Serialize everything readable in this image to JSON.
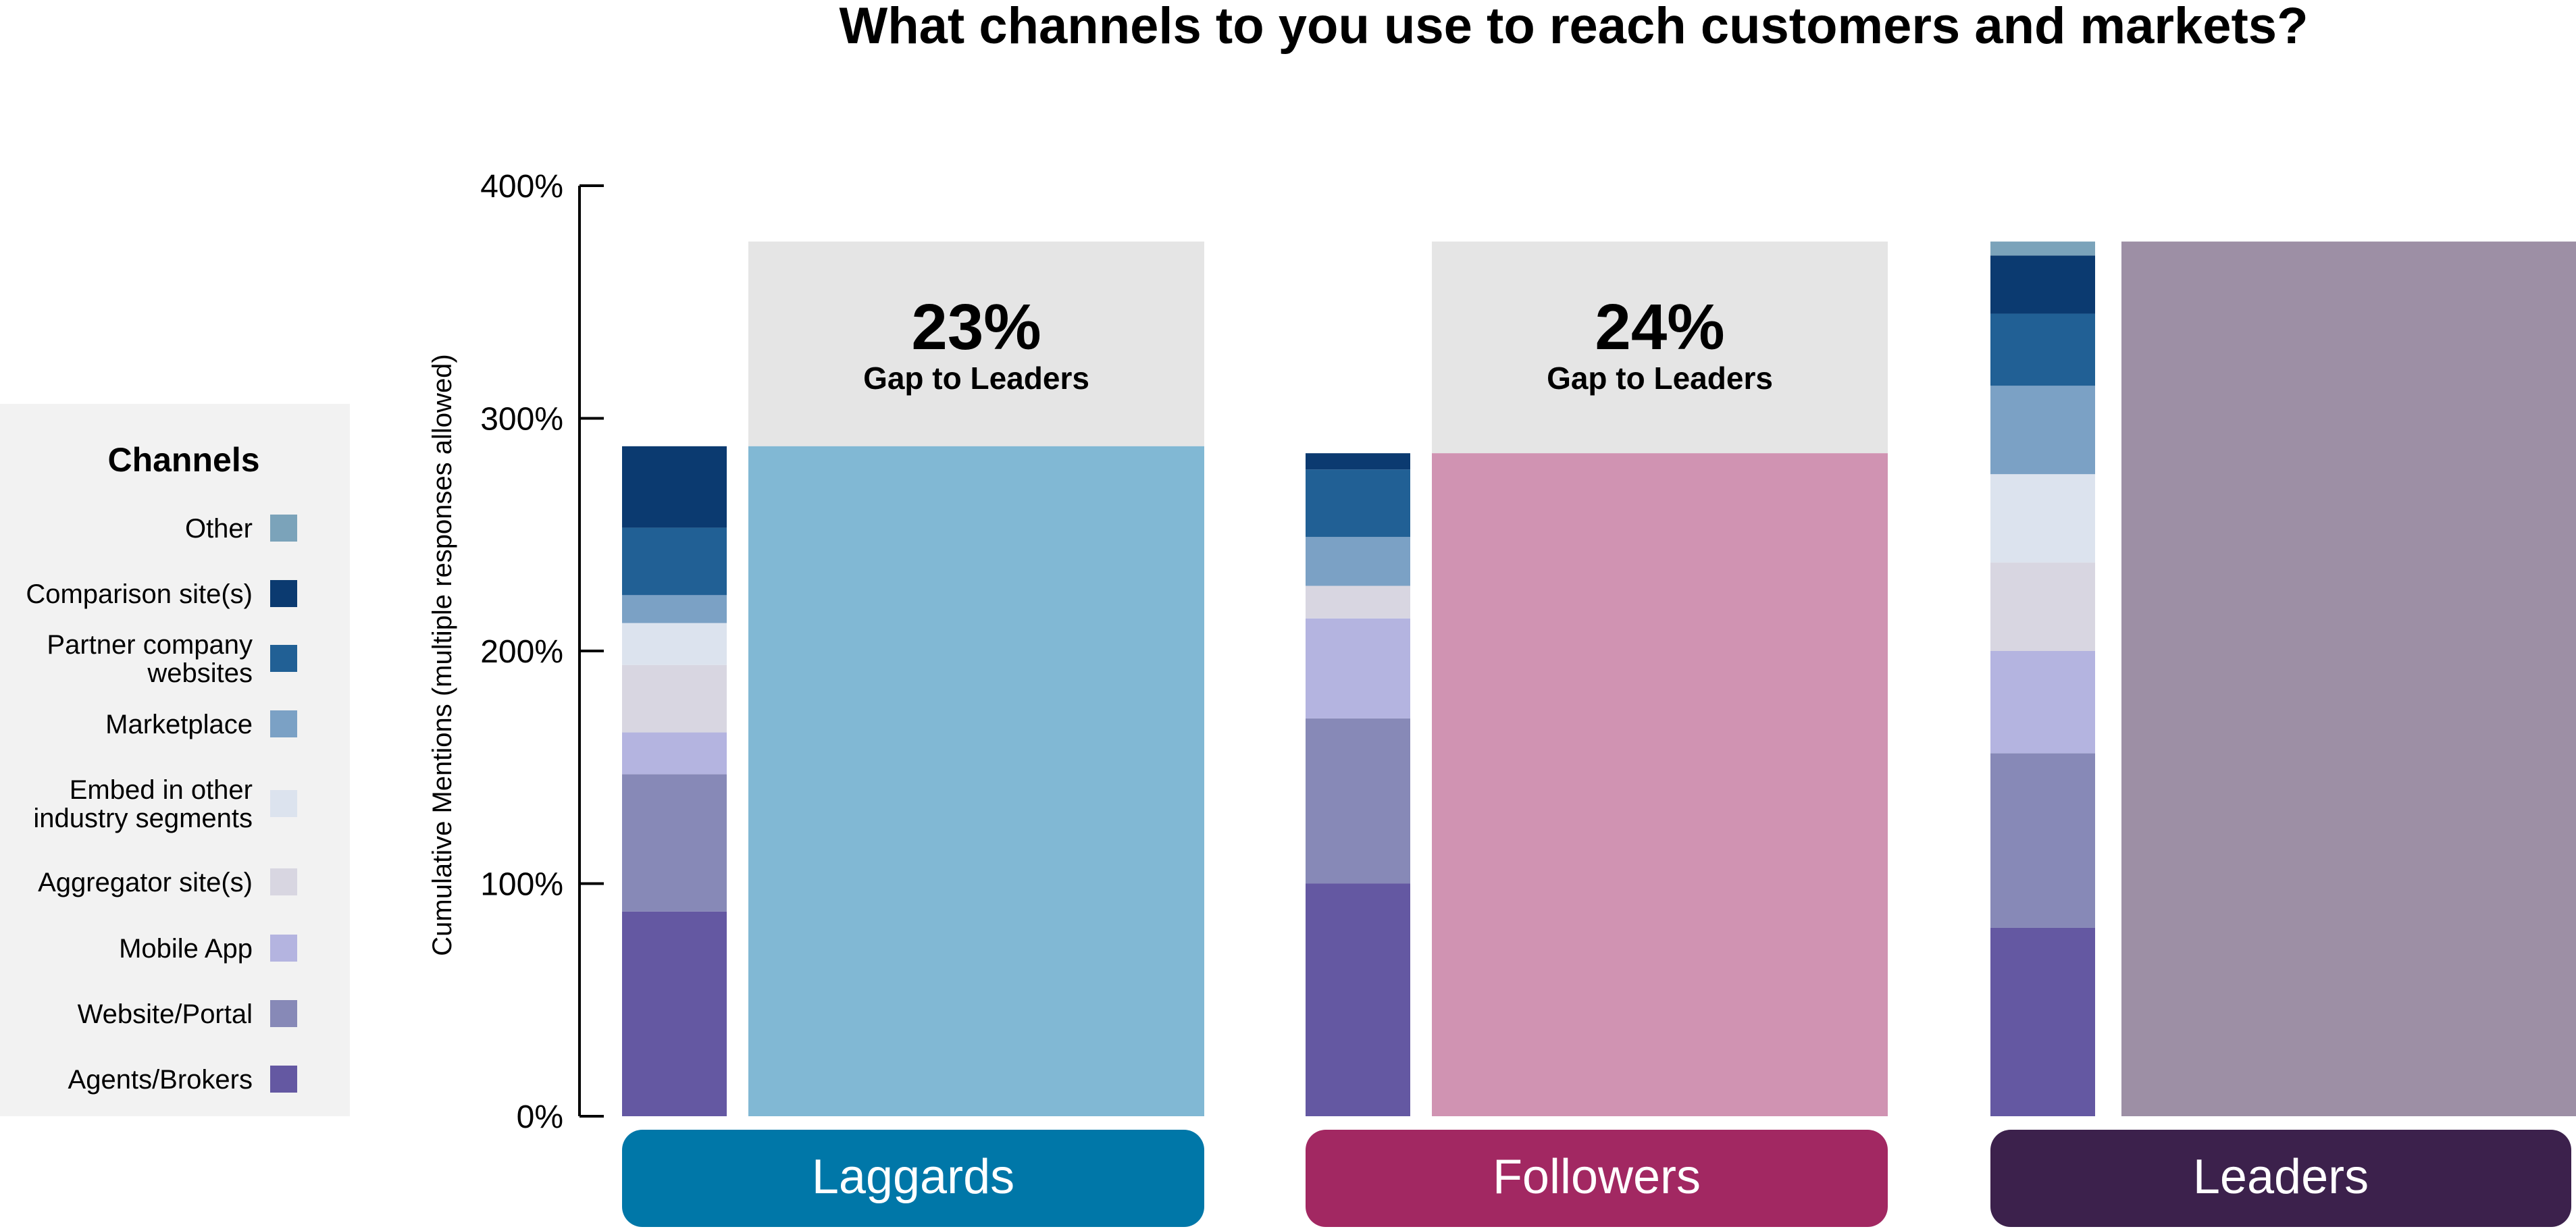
{
  "chart_data": {
    "type": "bar",
    "title": "What channels to you use to reach customers and markets?",
    "ylabel": "Cumulative Mentions (multiple responses allowed)",
    "ylim": [
      0,
      400
    ],
    "yticks": [
      0,
      100,
      200,
      300,
      400
    ],
    "ytick_labels": [
      "0%",
      "100%",
      "200%",
      "300%",
      "400%"
    ],
    "legend": {
      "title": "Channels",
      "placement": "left",
      "entries": [
        {
          "key": "other",
          "label": "Other",
          "color": "#7BA3BA"
        },
        {
          "key": "comparison",
          "label": "Comparison site(s)",
          "color": "#0B3A70"
        },
        {
          "key": "partner",
          "label": "Partner company\nwebsites",
          "color": "#216095"
        },
        {
          "key": "marketplace",
          "label": "Marketplace",
          "color": "#7BA1C5"
        },
        {
          "key": "embed",
          "label": "Embed in other\nindustry segments",
          "color": "#DCE3EE"
        },
        {
          "key": "aggregator",
          "label": "Aggregator site(s)",
          "color": "#D8D6E1"
        },
        {
          "key": "mobile",
          "label": "Mobile App",
          "color": "#B4B4E0"
        },
        {
          "key": "website",
          "label": "Website/Portal",
          "color": "#8789B7"
        },
        {
          "key": "agents",
          "label": "Agents/Brokers",
          "color": "#6458A2"
        }
      ]
    },
    "stack_order": [
      "agents",
      "website",
      "mobile",
      "aggregator",
      "embed",
      "marketplace",
      "partner",
      "comparison",
      "other"
    ],
    "groups": [
      {
        "name": "Laggards",
        "label_color": "#0077A8",
        "total_color": "#81B8D4",
        "total": 288,
        "gap_text": "23%",
        "gap_label": "Gap to Leaders",
        "stack": {
          "agents": 88,
          "website": 59,
          "mobile": 18,
          "aggregator": 29,
          "embed": 18,
          "marketplace": 12,
          "partner": 29,
          "comparison": 35,
          "other": 0
        }
      },
      {
        "name": "Followers",
        "label_color": "#A22862",
        "total_color": "#D093B2",
        "total": 285,
        "gap_text": "24%",
        "gap_label": "Gap to Leaders",
        "stack": {
          "agents": 100,
          "website": 71,
          "mobile": 43,
          "aggregator": 14,
          "embed": 0,
          "marketplace": 21,
          "partner": 29,
          "comparison": 7,
          "other": 0
        }
      },
      {
        "name": "Leaders",
        "label_color": "#3C214C",
        "total_color": "#9D8FA5",
        "total": 376,
        "gap_text": "",
        "gap_label": "",
        "stack": {
          "agents": 81,
          "website": 75,
          "mobile": 44,
          "aggregator": 38,
          "embed": 38,
          "marketplace": 38,
          "partner": 31,
          "comparison": 25,
          "other": 6
        }
      }
    ]
  }
}
